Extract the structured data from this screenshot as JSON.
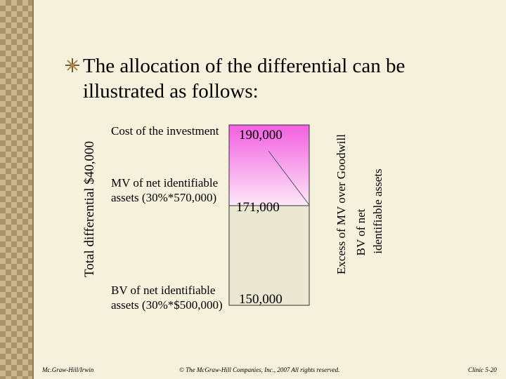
{
  "title": "The allocation of the differential can be illustrated as follows:",
  "left_label": "Total differential $40,000",
  "rows": [
    {
      "label": "Cost of the investment",
      "amount": "190,000"
    },
    {
      "label": "MV of net identifiable assets (30%*570,000)",
      "amount": "171,000"
    },
    {
      "label": "BV of net identifiable assets (30%*$500,000)",
      "amount": "150,000"
    }
  ],
  "right_labels": [
    "Excess of MV over Goodwill",
    "BV of net",
    "identifiable assets"
  ],
  "footer": {
    "left": "Mc.Graw-Hill/Irwin",
    "center": "© The McGraw-Hill Companies, Inc., 2007 All rights reserved.",
    "right": "Clinic 5-20"
  }
}
